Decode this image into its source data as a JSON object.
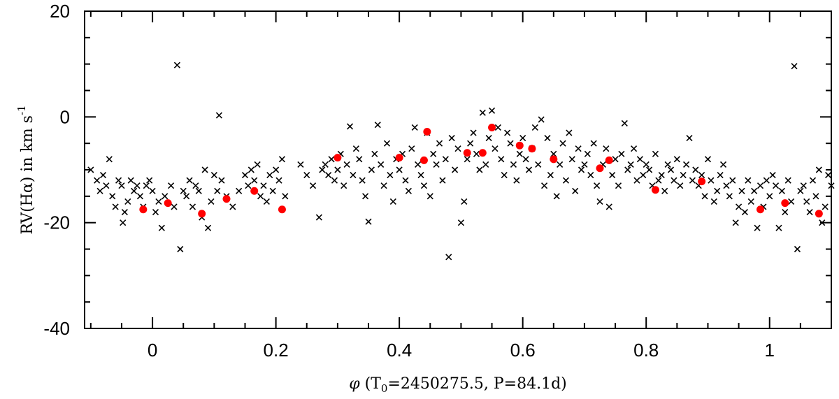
{
  "chart_data": {
    "type": "scatter",
    "title": "",
    "xlabel_parts": {
      "symbol": "φ",
      "open": " (T",
      "sub": "0",
      "rest": "=2450275.5, P=84.1d)"
    },
    "ylabel_parts": {
      "main": "RV(Hα) in km s",
      "sup": "-1"
    },
    "xlim": [
      -0.11,
      1.1
    ],
    "ylim": [
      -40,
      20
    ],
    "x_ticks": [
      0,
      0.2,
      0.4,
      0.6,
      0.8,
      1
    ],
    "x_tick_labels": [
      "0",
      "0.2",
      "0.4",
      "0.6",
      "0.8",
      "1"
    ],
    "y_ticks": [
      -40,
      -20,
      0,
      20
    ],
    "y_tick_labels": [
      "-40",
      "-20",
      "0",
      "20"
    ],
    "grid": false,
    "series": [
      {
        "marker": "x",
        "color": "#000000",
        "points": [
          [
            -0.1,
            -10
          ],
          [
            -0.09,
            -12
          ],
          [
            -0.085,
            -14
          ],
          [
            -0.08,
            -11
          ],
          [
            -0.075,
            -13
          ],
          [
            -0.07,
            -8
          ],
          [
            -0.065,
            -15
          ],
          [
            -0.06,
            -17
          ],
          [
            -0.055,
            -12
          ],
          [
            -0.05,
            -13
          ],
          [
            -0.048,
            -20
          ],
          [
            -0.045,
            -18
          ],
          [
            -0.04,
            -16
          ],
          [
            -0.035,
            -12
          ],
          [
            -0.03,
            -14
          ],
          [
            -0.025,
            -13
          ],
          [
            -0.02,
            -15
          ],
          [
            -0.015,
            -17
          ],
          [
            -0.01,
            -13
          ],
          [
            -0.005,
            -12
          ],
          [
            0.0,
            -14
          ],
          [
            0.005,
            -18
          ],
          [
            0.01,
            -16
          ],
          [
            0.015,
            -21
          ],
          [
            0.02,
            -15
          ],
          [
            0.03,
            -13
          ],
          [
            0.035,
            -17
          ],
          [
            0.04,
            9.8
          ],
          [
            0.045,
            -25
          ],
          [
            0.05,
            -14
          ],
          [
            0.055,
            -15
          ],
          [
            0.06,
            -12
          ],
          [
            0.065,
            -17
          ],
          [
            0.07,
            -13
          ],
          [
            0.075,
            -14
          ],
          [
            0.08,
            -19
          ],
          [
            0.085,
            -10
          ],
          [
            0.09,
            -21
          ],
          [
            0.095,
            -16
          ],
          [
            0.1,
            -11
          ],
          [
            0.105,
            -14
          ],
          [
            0.108,
            0.3
          ],
          [
            0.112,
            -12
          ],
          [
            0.12,
            -15
          ],
          [
            0.13,
            -17
          ],
          [
            0.14,
            -14
          ],
          [
            0.15,
            -11
          ],
          [
            0.155,
            -13
          ],
          [
            0.16,
            -10
          ],
          [
            0.165,
            -12
          ],
          [
            0.17,
            -9
          ],
          [
            0.175,
            -15
          ],
          [
            0.18,
            -13
          ],
          [
            0.185,
            -16
          ],
          [
            0.19,
            -11
          ],
          [
            0.195,
            -14
          ],
          [
            0.2,
            -10
          ],
          [
            0.205,
            -12
          ],
          [
            0.21,
            -8
          ],
          [
            0.215,
            -15
          ],
          [
            0.24,
            -9
          ],
          [
            0.25,
            -11
          ],
          [
            0.26,
            -13
          ],
          [
            0.27,
            -19
          ],
          [
            0.275,
            -10
          ],
          [
            0.28,
            -9
          ],
          [
            0.285,
            -11
          ],
          [
            0.29,
            -8
          ],
          [
            0.295,
            -12
          ],
          [
            0.3,
            -10
          ],
          [
            0.305,
            -7
          ],
          [
            0.31,
            -13
          ],
          [
            0.315,
            -9
          ],
          [
            0.32,
            -1.8
          ],
          [
            0.325,
            -11
          ],
          [
            0.33,
            -6
          ],
          [
            0.335,
            -8
          ],
          [
            0.34,
            -12
          ],
          [
            0.345,
            -15
          ],
          [
            0.35,
            -19.8
          ],
          [
            0.355,
            -10
          ],
          [
            0.36,
            -7
          ],
          [
            0.365,
            -1.5
          ],
          [
            0.37,
            -9
          ],
          [
            0.375,
            -13
          ],
          [
            0.38,
            -5
          ],
          [
            0.385,
            -11
          ],
          [
            0.39,
            -16
          ],
          [
            0.395,
            -8
          ],
          [
            0.4,
            -10
          ],
          [
            0.405,
            -7
          ],
          [
            0.41,
            -12
          ],
          [
            0.415,
            -14
          ],
          [
            0.42,
            -6
          ],
          [
            0.425,
            -2
          ],
          [
            0.43,
            -9
          ],
          [
            0.435,
            -11
          ],
          [
            0.44,
            -13
          ],
          [
            0.445,
            -3
          ],
          [
            0.45,
            -15
          ],
          [
            0.455,
            -7
          ],
          [
            0.46,
            -9
          ],
          [
            0.465,
            -5
          ],
          [
            0.47,
            -12
          ],
          [
            0.475,
            -8
          ],
          [
            0.48,
            -26.5
          ],
          [
            0.485,
            -4
          ],
          [
            0.49,
            -10
          ],
          [
            0.495,
            -6
          ],
          [
            0.5,
            -20
          ],
          [
            0.505,
            -16
          ],
          [
            0.51,
            -8
          ],
          [
            0.515,
            -5
          ],
          [
            0.52,
            -3
          ],
          [
            0.525,
            -7
          ],
          [
            0.53,
            -10
          ],
          [
            0.535,
            0.8
          ],
          [
            0.54,
            -9
          ],
          [
            0.545,
            -4
          ],
          [
            0.55,
            1.2
          ],
          [
            0.555,
            -6
          ],
          [
            0.56,
            -2
          ],
          [
            0.565,
            -8
          ],
          [
            0.57,
            -11
          ],
          [
            0.575,
            -3
          ],
          [
            0.58,
            -5
          ],
          [
            0.585,
            -9
          ],
          [
            0.59,
            -12
          ],
          [
            0.595,
            -7
          ],
          [
            0.6,
            -4
          ],
          [
            0.605,
            -8
          ],
          [
            0.61,
            -10
          ],
          [
            0.615,
            -6
          ],
          [
            0.62,
            -2
          ],
          [
            0.625,
            -9
          ],
          [
            0.63,
            -0.5
          ],
          [
            0.635,
            -13
          ],
          [
            0.64,
            -4
          ],
          [
            0.645,
            -11
          ],
          [
            0.65,
            -7
          ],
          [
            0.655,
            -15
          ],
          [
            0.66,
            -9
          ],
          [
            0.665,
            -5
          ],
          [
            0.67,
            -12
          ],
          [
            0.675,
            -3
          ],
          [
            0.68,
            -8
          ],
          [
            0.685,
            -14
          ],
          [
            0.69,
            -6
          ],
          [
            0.695,
            -10
          ],
          [
            0.7,
            -9
          ],
          [
            0.705,
            -7
          ],
          [
            0.71,
            -11
          ],
          [
            0.715,
            -5
          ],
          [
            0.72,
            -13
          ],
          [
            0.725,
            -16
          ],
          [
            0.73,
            -9
          ],
          [
            0.735,
            -6
          ],
          [
            0.74,
            -17
          ],
          [
            0.745,
            -11
          ],
          [
            0.75,
            -8
          ],
          [
            0.755,
            -13
          ],
          [
            0.76,
            -7
          ],
          [
            0.765,
            -1.2
          ],
          [
            0.77,
            -10
          ],
          [
            0.775,
            -9
          ],
          [
            0.78,
            -6
          ],
          [
            0.785,
            -12
          ],
          [
            0.79,
            -8
          ],
          [
            0.795,
            -11
          ],
          [
            0.8,
            -9
          ],
          [
            0.805,
            -10
          ],
          [
            0.81,
            -13
          ],
          [
            0.815,
            -7
          ],
          [
            0.82,
            -12
          ],
          [
            0.825,
            -11
          ],
          [
            0.83,
            -14
          ],
          [
            0.835,
            -9
          ],
          [
            0.84,
            -10
          ],
          [
            0.845,
            -12
          ],
          [
            0.85,
            -8
          ],
          [
            0.855,
            -13
          ],
          [
            0.86,
            -11
          ],
          [
            0.865,
            -9
          ],
          [
            0.87,
            -4
          ],
          [
            0.875,
            -12
          ],
          [
            0.88,
            -10
          ],
          [
            0.885,
            -13
          ],
          [
            0.89,
            -11
          ],
          [
            0.895,
            -15
          ],
          [
            0.9,
            -8
          ],
          [
            0.905,
            -12
          ],
          [
            0.91,
            -16
          ],
          [
            0.915,
            -14
          ],
          [
            0.92,
            -11
          ],
          [
            0.925,
            -9
          ],
          [
            0.93,
            -13
          ],
          [
            0.935,
            -15
          ],
          [
            0.94,
            -12
          ],
          [
            0.945,
            -20
          ],
          [
            0.95,
            -17
          ],
          [
            0.955,
            -14
          ],
          [
            0.96,
            -18
          ],
          [
            0.965,
            -12
          ],
          [
            0.97,
            -16
          ],
          [
            0.975,
            -14
          ],
          [
            0.98,
            -21
          ],
          [
            0.985,
            -13
          ],
          [
            0.99,
            -17
          ],
          [
            0.995,
            -12
          ],
          [
            1.0,
            -15
          ],
          [
            1.005,
            -11
          ],
          [
            1.01,
            -13
          ],
          [
            1.015,
            -21
          ],
          [
            1.02,
            -14
          ],
          [
            1.025,
            -18
          ],
          [
            1.03,
            -12
          ],
          [
            1.035,
            -16
          ],
          [
            1.04,
            9.6
          ],
          [
            1.045,
            -25
          ],
          [
            1.05,
            -14
          ],
          [
            1.055,
            -13
          ],
          [
            1.06,
            -16
          ],
          [
            1.065,
            -18
          ],
          [
            1.07,
            -12
          ],
          [
            1.075,
            -15
          ],
          [
            1.08,
            -10
          ],
          [
            1.085,
            -20
          ],
          [
            1.09,
            -17
          ],
          [
            1.095,
            -11
          ],
          [
            1.1,
            -13
          ]
        ]
      },
      {
        "marker": "filled-circle",
        "color": "#ff0000",
        "points": [
          [
            -0.015,
            -17.5
          ],
          [
            0.025,
            -16.3
          ],
          [
            0.08,
            -18.3
          ],
          [
            0.12,
            -15.5
          ],
          [
            0.165,
            -14
          ],
          [
            0.21,
            -17.5
          ],
          [
            0.3,
            -7.7
          ],
          [
            0.4,
            -7.7
          ],
          [
            0.44,
            -8.2
          ],
          [
            0.445,
            -2.8
          ],
          [
            0.51,
            -6.8
          ],
          [
            0.535,
            -6.8
          ],
          [
            0.55,
            -2
          ],
          [
            0.595,
            -5.4
          ],
          [
            0.615,
            -6
          ],
          [
            0.65,
            -8
          ],
          [
            0.725,
            -9.7
          ],
          [
            0.74,
            -8.2
          ],
          [
            0.815,
            -13.8
          ],
          [
            0.89,
            -12.2
          ],
          [
            0.985,
            -17.5
          ],
          [
            1.025,
            -16.3
          ],
          [
            1.08,
            -18.3
          ]
        ]
      }
    ]
  }
}
